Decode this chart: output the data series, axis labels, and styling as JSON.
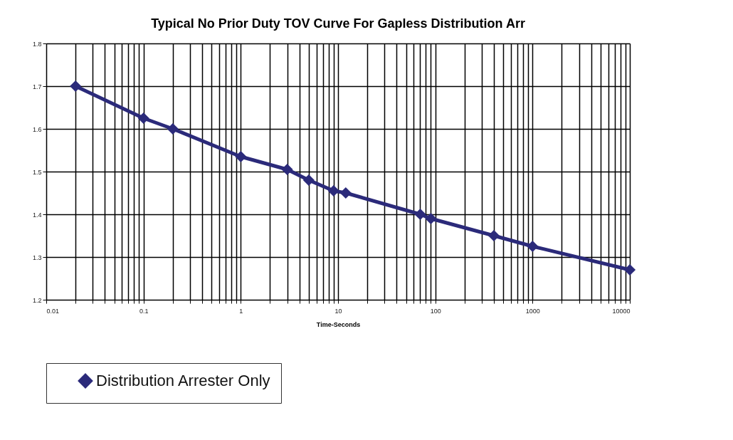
{
  "chart_data": {
    "type": "line",
    "title": "Typical No Prior Duty TOV Curve For Gapless Distribution Arr",
    "xlabel": "Time-Seconds",
    "log": "x",
    "grid": true,
    "legend": "bottom",
    "marker": "diamond",
    "line_style": "solid",
    "xlim": [
      0.01,
      10000
    ],
    "ylim": [
      1.2,
      1.8
    ],
    "xticks": [
      0.01,
      {
        "value": 0.02,
        "label": null
      },
      {
        "value": 0.03,
        "label": null
      },
      {
        "value": 0.04,
        "label": null
      },
      {
        "value": 0.05,
        "label": null
      },
      {
        "value": 0.06,
        "label": null
      },
      {
        "value": 0.07,
        "label": null
      },
      {
        "value": 0.08,
        "label": null
      },
      {
        "value": 0.09,
        "label": null
      },
      0.1,
      {
        "value": 0.2,
        "label": null
      },
      {
        "value": 0.3,
        "label": null
      },
      {
        "value": 0.4,
        "label": null
      },
      {
        "value": 0.5,
        "label": null
      },
      {
        "value": 0.6,
        "label": null
      },
      {
        "value": 0.7,
        "label": null
      },
      {
        "value": 0.8,
        "label": null
      },
      {
        "value": 0.9,
        "label": null
      },
      1,
      {
        "value": 2,
        "label": null
      },
      {
        "value": 3,
        "label": null
      },
      {
        "value": 4,
        "label": null
      },
      {
        "value": 5,
        "label": null
      },
      {
        "value": 6,
        "label": null
      },
      {
        "value": 7,
        "label": null
      },
      {
        "value": 8,
        "label": null
      },
      {
        "value": 9,
        "label": null
      },
      10,
      {
        "value": 20,
        "label": null
      },
      {
        "value": 30,
        "label": null
      },
      {
        "value": 40,
        "label": null
      },
      {
        "value": 50,
        "label": null
      },
      {
        "value": 60,
        "label": null
      },
      {
        "value": 70,
        "label": null
      },
      {
        "value": 80,
        "label": null
      },
      {
        "value": 90,
        "label": null
      },
      100,
      {
        "value": 200,
        "label": null
      },
      {
        "value": 300,
        "label": null
      },
      {
        "value": 400,
        "label": null
      },
      {
        "value": 500,
        "label": null
      },
      {
        "value": 600,
        "label": null
      },
      {
        "value": 700,
        "label": null
      },
      {
        "value": 800,
        "label": null
      },
      {
        "value": 900,
        "label": null
      },
      1000,
      {
        "value": 2000,
        "label": null
      },
      {
        "value": 3000,
        "label": null
      },
      {
        "value": 4000,
        "label": null
      },
      {
        "value": 5000,
        "label": null
      },
      {
        "value": 6000,
        "label": null
      },
      {
        "value": 7000,
        "label": null
      },
      {
        "value": 8000,
        "label": null
      },
      {
        "value": 9000,
        "label": null
      },
      10000
    ],
    "yticks": [
      1.2,
      1.3,
      1.4,
      1.5,
      1.6,
      1.7,
      1.8
    ],
    "x": [
      0.02,
      0.1,
      0.2,
      1,
      3,
      5,
      9,
      12,
      70,
      90,
      400,
      1000,
      10000
    ],
    "series": [
      {
        "name": "Distribution Arrester Only",
        "color": "#2b2a7a",
        "values": [
          1.7,
          1.625,
          1.6,
          1.535,
          1.505,
          1.48,
          1.455,
          1.45,
          1.4,
          1.39,
          1.35,
          1.325,
          1.27
        ]
      }
    ]
  }
}
